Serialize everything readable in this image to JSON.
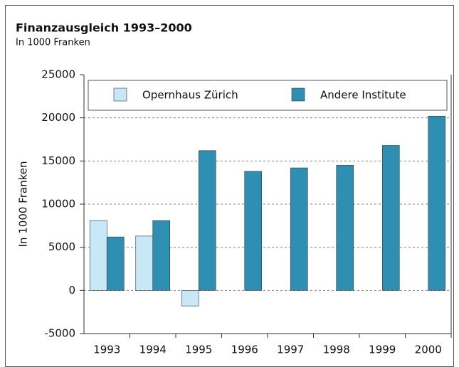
{
  "chart_data": {
    "type": "bar",
    "title": "Finanzausgleich 1993–2000",
    "subtitle": "In 1000 Franken",
    "y_label": "In 1000 Franken",
    "categories": [
      "1993",
      "1994",
      "1995",
      "1996",
      "1997",
      "1998",
      "1999",
      "2000"
    ],
    "series": [
      {
        "name": "Opernhaus Zürich",
        "color": "#c8e7f7",
        "values": [
          8100,
          6300,
          -1800,
          null,
          null,
          null,
          null,
          null
        ]
      },
      {
        "name": "Andere Institute",
        "color": "#2e8fb2",
        "values": [
          6200,
          8100,
          16200,
          13800,
          14200,
          14500,
          16800,
          20200
        ]
      }
    ],
    "ylim": [
      -5000,
      25000
    ],
    "yticks": [
      -5000,
      0,
      5000,
      10000,
      15000,
      20000,
      25000
    ],
    "grid": true,
    "legend": "top"
  }
}
